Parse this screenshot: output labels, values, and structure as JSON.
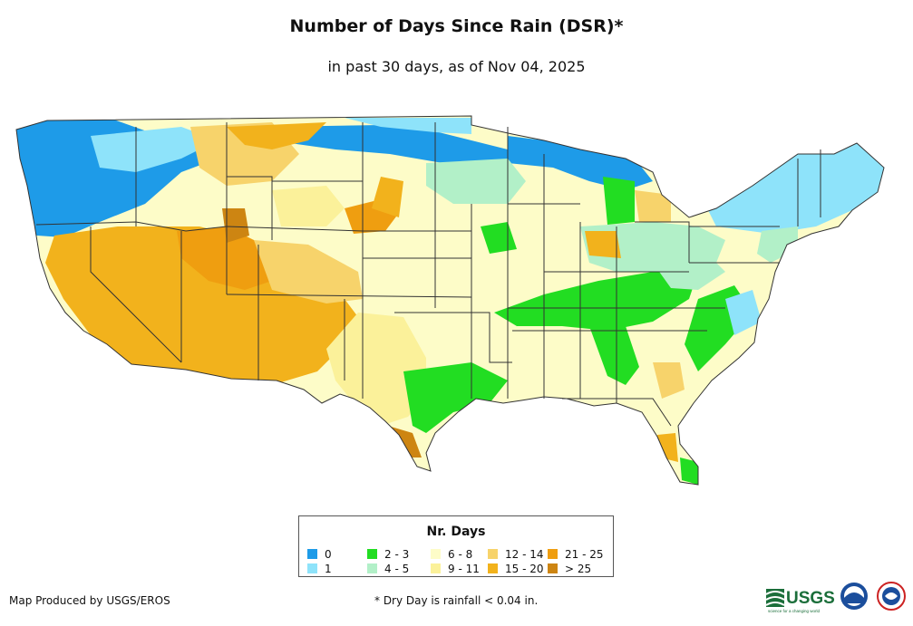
{
  "title": "Number of Days Since Rain (DSR)*",
  "subtitle": "in past 30 days, as of Nov 04, 2025",
  "legend": {
    "title": "Nr. Days",
    "items": [
      {
        "label": "0",
        "color": "#1e9be8"
      },
      {
        "label": "1",
        "color": "#8ee3fa"
      },
      {
        "label": "2 - 3",
        "color": "#22dd22"
      },
      {
        "label": "4 - 5",
        "color": "#b2f0c8"
      },
      {
        "label": "6 - 8",
        "color": "#fdfcc8"
      },
      {
        "label": "9 - 11",
        "color": "#fbf19a"
      },
      {
        "label": "12 - 14",
        "color": "#f7d36b"
      },
      {
        "label": "15 - 20",
        "color": "#f2b21c"
      },
      {
        "label": "21 - 25",
        "color": "#ef9e10"
      },
      {
        "label": "> 25",
        "color": "#cd8512"
      }
    ]
  },
  "footer": {
    "credit": "Map Produced by USGS/EROS",
    "note": "* Dry Day is rainfall < 0.04 in."
  },
  "logos": {
    "usgs_text": "USGS",
    "usgs_tagline": "science for a changing world"
  },
  "colors": {
    "border": "#333333",
    "background": "#ffffff"
  }
}
